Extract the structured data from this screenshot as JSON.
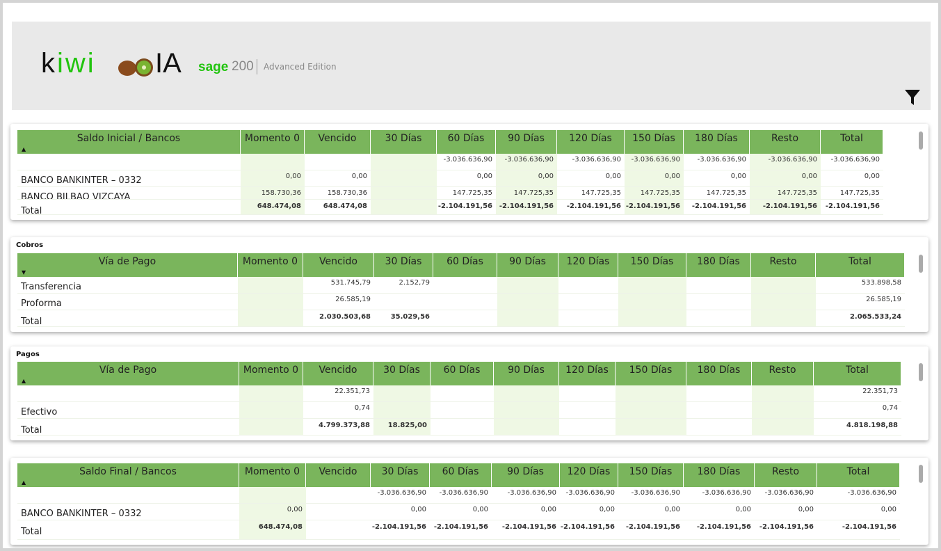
{
  "header": {
    "logo": "kiwi",
    "logo_suffix": "IA",
    "brand": "sage",
    "version": "200",
    "edition": "Advanced Edition"
  },
  "tables": [
    {
      "title": null,
      "columns": [
        "Saldo Inicial / Bancos",
        "Momento 0",
        "Vencido",
        "30 Días",
        "60 Días",
        "90 Días",
        "120 Días",
        "150 Días",
        "180 Días",
        "Resto",
        "Total"
      ],
      "rows": [
        {
          "label": null,
          "cells": [
            null,
            null,
            null,
            "-3.036.636,90",
            "-3.036.636,90",
            "-3.036.636,90",
            "-3.036.636,90",
            "-3.036.636,90",
            "-3.036.636,90",
            "-3.036.636,90"
          ]
        },
        {
          "label": "BANCO BANKINTER – 0332",
          "cells": [
            "0,00",
            "0,00",
            null,
            "0,00",
            "0,00",
            "0,00",
            "0,00",
            "0,00",
            "0,00",
            "0,00"
          ]
        },
        {
          "label": "BANCO BILBAO VIZCAYA",
          "cells": [
            "158.730,36",
            "158.730,36",
            null,
            "147.725,35",
            "147.725,35",
            "147.725,35",
            "147.725,35",
            "147.725,35",
            "147.725,35",
            "147.725,35"
          ]
        }
      ],
      "total": {
        "label": "Total",
        "cells": [
          "648.474,08",
          "648.474,08",
          null,
          "-2.104.191,56",
          "-2.104.191,56",
          "-2.104.191,56",
          "-2.104.191,56",
          "-2.104.191,56",
          "-2.104.191,56",
          "-2.104.191,56"
        ]
      }
    },
    {
      "title": "Cobros",
      "columns": [
        "Vía de Pago",
        "Momento 0",
        "Vencido",
        "30 Días",
        "60 Días",
        "90 Días",
        "120 Días",
        "150 Días",
        "180 Días",
        "Resto",
        "Total"
      ],
      "rows": [
        {
          "label": "Transferencia",
          "cells": [
            null,
            "531.745,79",
            "2.152,79",
            null,
            null,
            null,
            null,
            null,
            null,
            "533.898,58"
          ]
        },
        {
          "label": "Proforma",
          "cells": [
            null,
            "26.585,19",
            null,
            null,
            null,
            null,
            null,
            null,
            null,
            "26.585,19"
          ]
        }
      ],
      "total": {
        "label": "Total",
        "cells": [
          null,
          "2.030.503,68",
          "35.029,56",
          null,
          null,
          null,
          null,
          null,
          null,
          "2.065.533,24"
        ]
      }
    },
    {
      "title": "Pagos",
      "columns": [
        "Vía de Pago",
        "Momento 0",
        "Vencido",
        "30 Días",
        "60 Días",
        "90 Días",
        "120 Días",
        "150 Días",
        "180 Días",
        "Resto",
        "Total"
      ],
      "rows": [
        {
          "label": null,
          "cells": [
            null,
            "22.351,73",
            null,
            null,
            null,
            null,
            null,
            null,
            null,
            "22.351,73"
          ]
        },
        {
          "label": "Efectivo",
          "cells": [
            null,
            "0,74",
            null,
            null,
            null,
            null,
            null,
            null,
            null,
            "0,74"
          ]
        }
      ],
      "total": {
        "label": "Total",
        "cells": [
          null,
          "4.799.373,88",
          "18.825,00",
          null,
          null,
          null,
          null,
          null,
          null,
          "4.818.198,88"
        ]
      }
    },
    {
      "title": null,
      "columns": [
        "Saldo Final / Bancos",
        "Momento 0",
        "Vencido",
        "30 Días",
        "60 Días",
        "90 Días",
        "120 Días",
        "150 Días",
        "180 Días",
        "Resto",
        "Total"
      ],
      "rows": [
        {
          "label": null,
          "cells": [
            null,
            null,
            "-3.036.636,90",
            "-3.036.636,90",
            "-3.036.636,90",
            "-3.036.636,90",
            "-3.036.636,90",
            "-3.036.636,90",
            "-3.036.636,90",
            "-3.036.636,90"
          ]
        },
        {
          "label": "BANCO BANKINTER – 0332",
          "cells": [
            "0,00",
            null,
            "0,00",
            "0,00",
            "0,00",
            "0,00",
            "0,00",
            "0,00",
            "0,00",
            "0,00"
          ]
        }
      ],
      "total": {
        "label": "Total",
        "cells": [
          "648.474,08",
          null,
          "-2.104.191,56",
          "-2.104.191,56",
          "-2.104.191,56",
          "-2.104.191,56",
          "-2.104.191,56",
          "-2.104.191,56",
          "-2.104.191,56",
          "-2.104.191,56"
        ]
      }
    }
  ]
}
